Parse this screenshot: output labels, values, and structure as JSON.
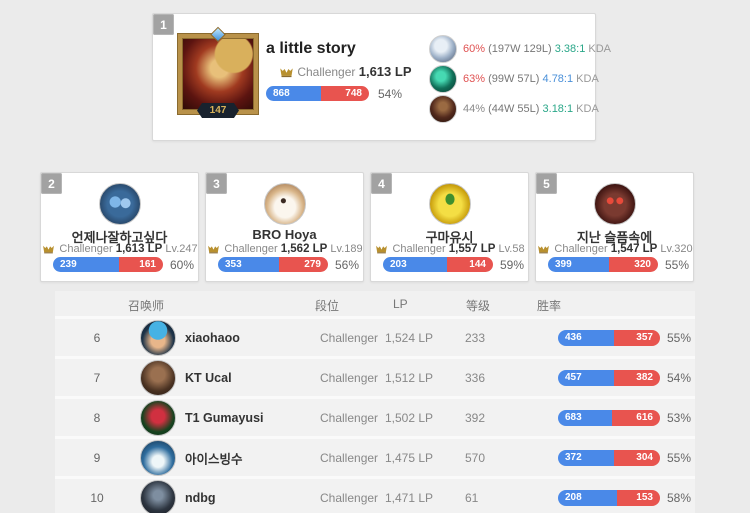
{
  "colors": {
    "bar-blue": "#4a89e8",
    "bar-red": "#e8544f",
    "winrate-red": "#e05252",
    "kda-teal": "#2aa789",
    "kda-blue": "#4a90d9",
    "text-dark": "#333333",
    "text-gray": "#888888",
    "tier-gold": "#b8902f"
  },
  "top_player": {
    "rank": "1",
    "name": "a little story",
    "level": "147",
    "tier": "Challenger",
    "lp": "1,613 LP",
    "wins": "868",
    "losses": "748",
    "winrate": "54%",
    "champions": [
      {
        "winrate": "60%",
        "record": "(197W 129L)",
        "kda": "3.38:1",
        "kda_label": "KDA"
      },
      {
        "winrate": "63%",
        "record": "(99W 57L)",
        "kda": "4.78:1",
        "kda_label": "KDA"
      },
      {
        "winrate": "44%",
        "record": "(44W 55L)",
        "kda": "3.18:1",
        "kda_label": "KDA"
      }
    ]
  },
  "cards": [
    {
      "rank": "2",
      "name": "언제나잘하고싶다",
      "tier": "Challenger",
      "lp": "1,613 LP",
      "level_label": "Lv.247",
      "wins": "239",
      "losses": "161",
      "winrate": "60%"
    },
    {
      "rank": "3",
      "name": "BRO Hoya",
      "tier": "Challenger",
      "lp": "1,562 LP",
      "level_label": "Lv.189",
      "wins": "353",
      "losses": "279",
      "winrate": "56%"
    },
    {
      "rank": "4",
      "name": "구마유시",
      "tier": "Challenger",
      "lp": "1,557 LP",
      "level_label": "Lv.58",
      "wins": "203",
      "losses": "144",
      "winrate": "59%"
    },
    {
      "rank": "5",
      "name": "지난 슬픔속에",
      "tier": "Challenger",
      "lp": "1,547 LP",
      "level_label": "Lv.320",
      "wins": "399",
      "losses": "320",
      "winrate": "55%"
    }
  ],
  "table": {
    "headers": {
      "summoner": "召唤师",
      "tier": "段位",
      "lp": "LP",
      "level": "等级",
      "winrate": "胜率"
    },
    "rows": [
      {
        "rank": "6",
        "name": "xiaohaoo",
        "tier": "Challenger",
        "lp": "1,524 LP",
        "level": "233",
        "wins": "436",
        "losses": "357",
        "winrate": "55%"
      },
      {
        "rank": "7",
        "name": "KT Ucal",
        "tier": "Challenger",
        "lp": "1,512 LP",
        "level": "336",
        "wins": "457",
        "losses": "382",
        "winrate": "54%"
      },
      {
        "rank": "8",
        "name": "T1 Gumayusi",
        "tier": "Challenger",
        "lp": "1,502 LP",
        "level": "392",
        "wins": "683",
        "losses": "616",
        "winrate": "53%"
      },
      {
        "rank": "9",
        "name": "아이스빙수",
        "tier": "Challenger",
        "lp": "1,475 LP",
        "level": "570",
        "wins": "372",
        "losses": "304",
        "winrate": "55%"
      },
      {
        "rank": "10",
        "name": "ndbg",
        "tier": "Challenger",
        "lp": "1,471 LP",
        "level": "61",
        "wins": "208",
        "losses": "153",
        "winrate": "58%"
      }
    ]
  }
}
